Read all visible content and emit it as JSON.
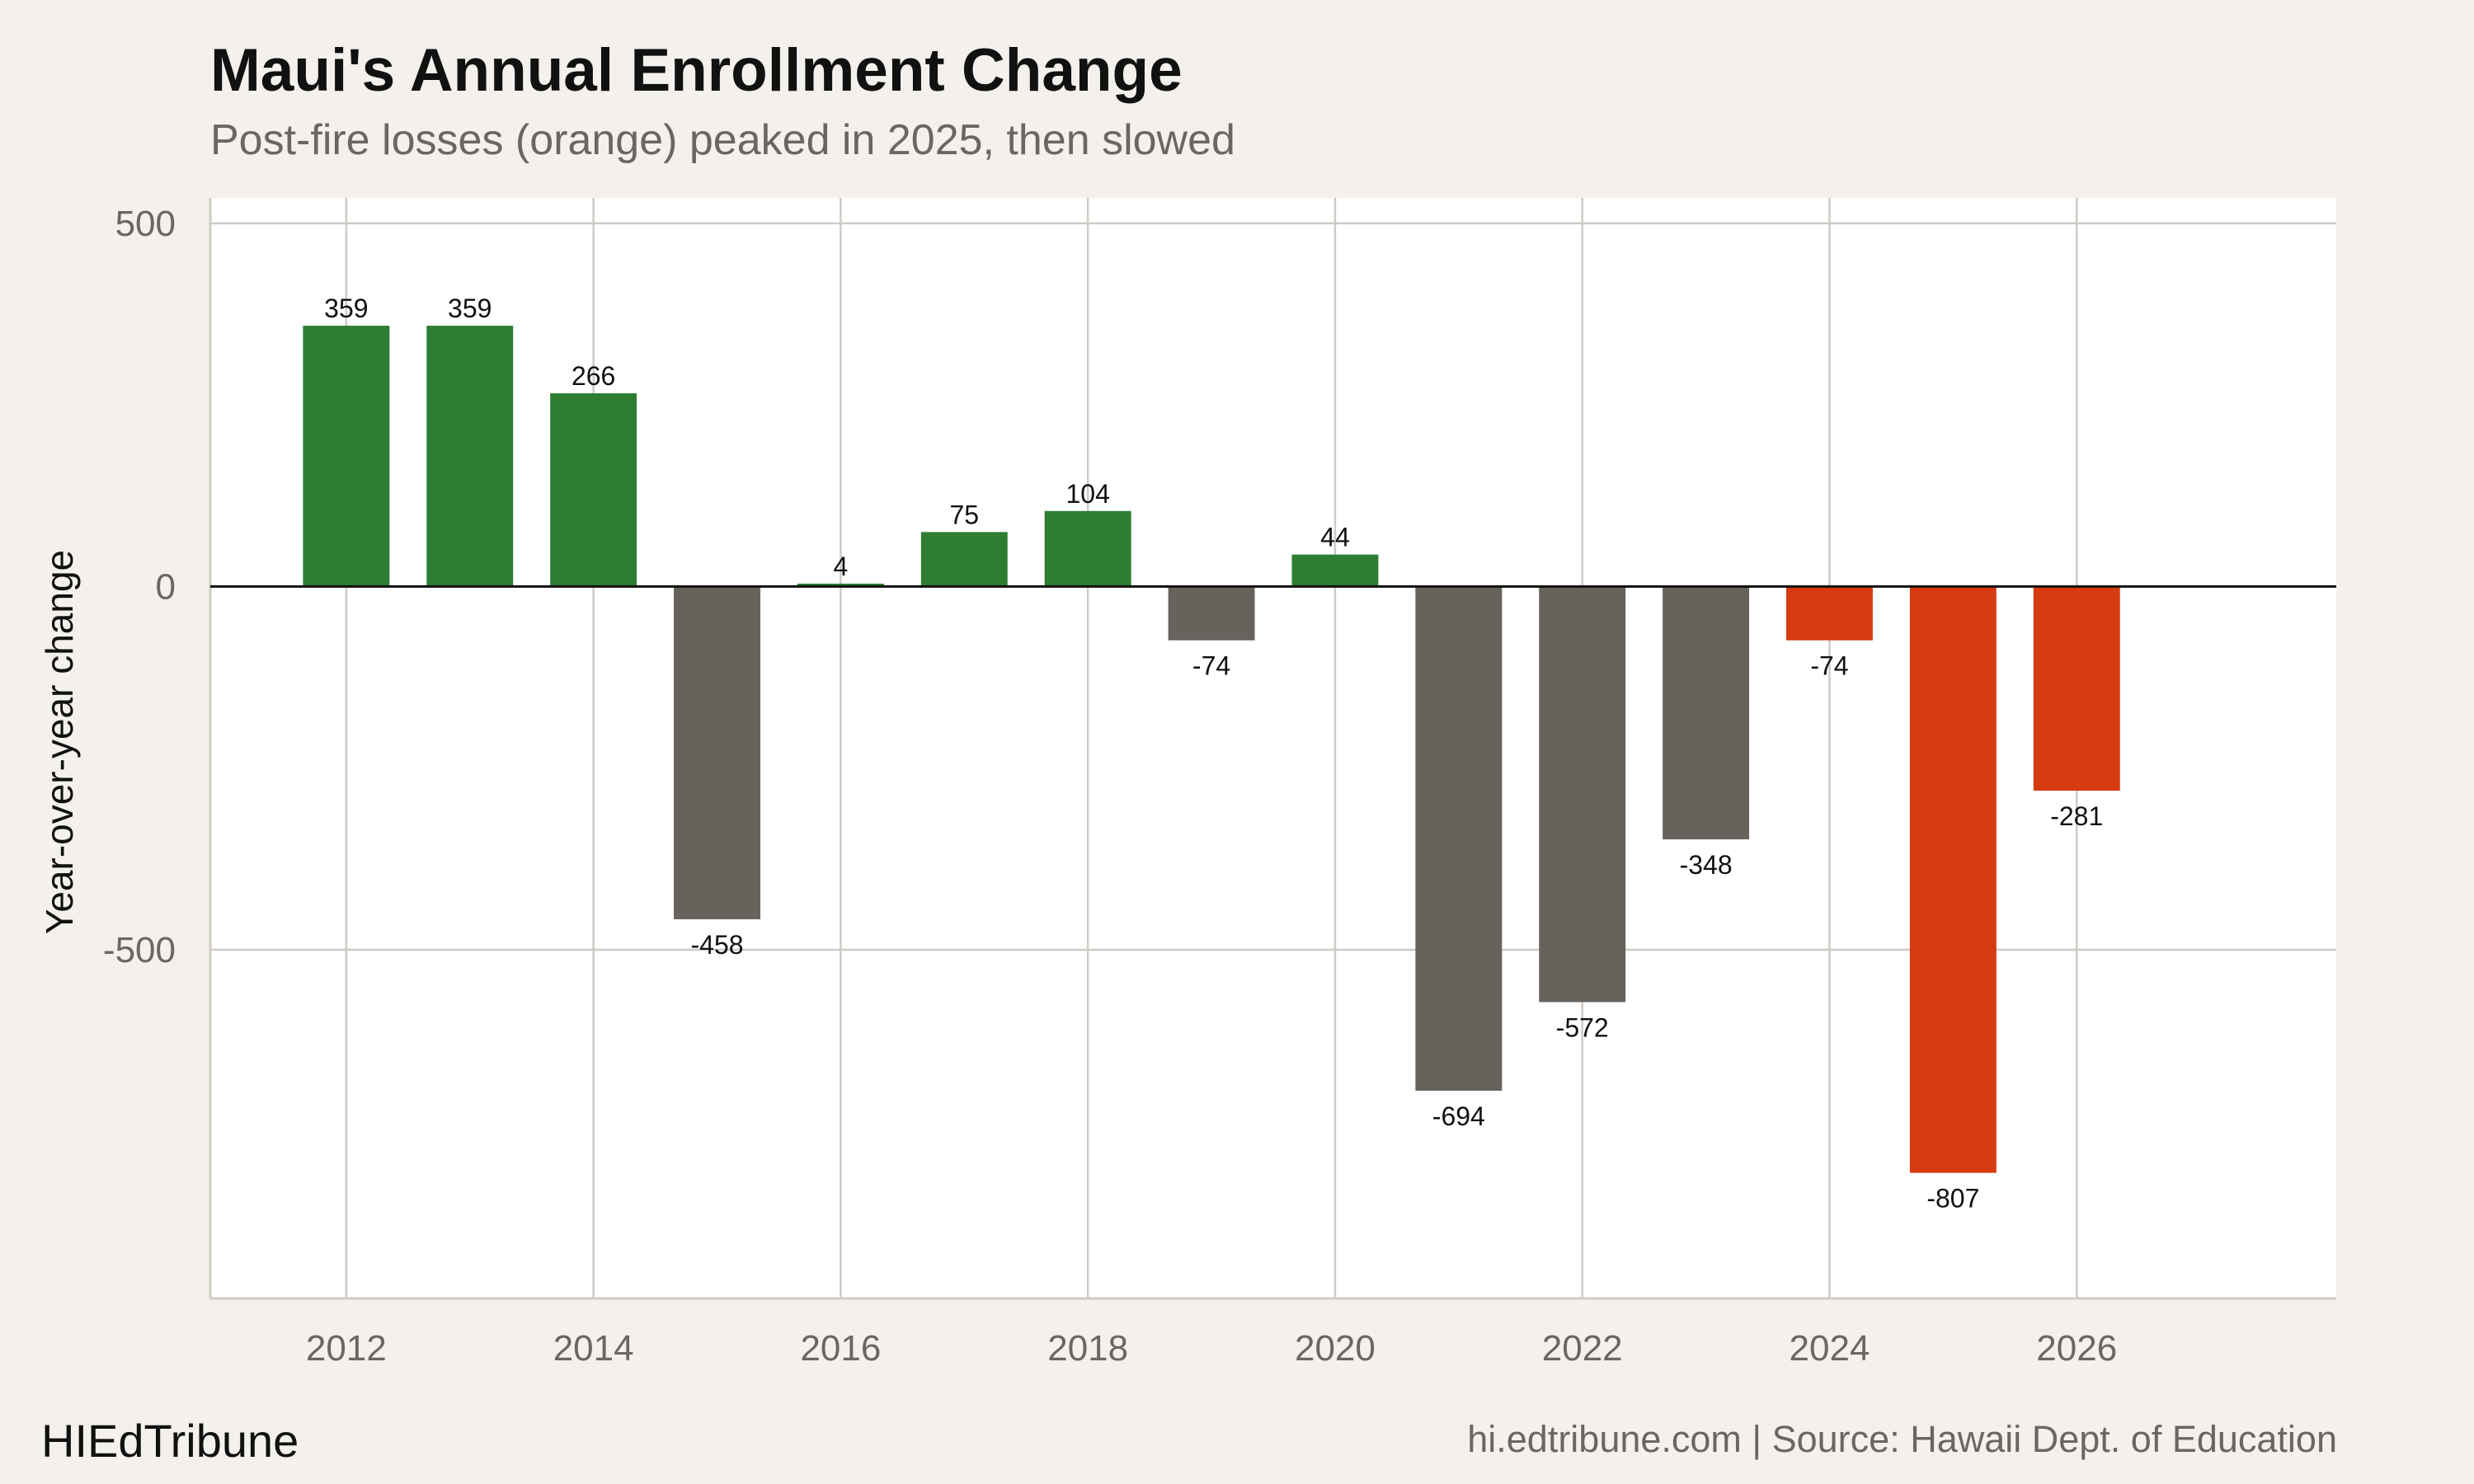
{
  "header": {
    "title": "Maui's Annual Enrollment Change",
    "subtitle": "Post-fire losses (orange) peaked in 2025, then slowed"
  },
  "footer": {
    "brand": "HIEdTribune",
    "source": "hi.edtribune.com | Source: Hawaii Dept. of Education"
  },
  "colors": {
    "background": "#f4f1ec",
    "panel": "#ffffff",
    "gain": "#2e7d32",
    "loss": "#68625d",
    "post_fire": "#d63a0f",
    "grid": "#cfcbc5"
  },
  "chart_data": {
    "type": "bar",
    "title": "Maui's Annual Enrollment Change",
    "subtitle": "Post-fire losses (orange) peaked in 2025, then slowed",
    "xlabel": "",
    "ylabel": "Year-over-year change",
    "x": [
      2012,
      2013,
      2014,
      2015,
      2016,
      2017,
      2018,
      2019,
      2020,
      2021,
      2022,
      2023,
      2024,
      2025,
      2026
    ],
    "values": [
      359,
      359,
      266,
      -458,
      4,
      75,
      104,
      -74,
      44,
      -694,
      -572,
      -348,
      -74,
      -807,
      -281
    ],
    "categories_color": [
      "gain",
      "gain",
      "gain",
      "loss",
      "gain",
      "gain",
      "gain",
      "loss",
      "gain",
      "loss",
      "loss",
      "loss",
      "post_fire",
      "post_fire",
      "post_fire"
    ],
    "data_labels": [
      "359",
      "359",
      "266",
      "-458",
      "4",
      "75",
      "104",
      "-74",
      "44",
      "-694",
      "-572",
      "-348",
      "-74",
      "-807",
      "-281"
    ],
    "xlim": [
      2010.9,
      2028.1
    ],
    "ylim": [
      -980,
      535
    ],
    "xticks": [
      2012,
      2014,
      2016,
      2018,
      2020,
      2022,
      2024,
      2026
    ],
    "xtick_labels": [
      "2012",
      "2014",
      "2016",
      "2018",
      "2020",
      "2022",
      "2024",
      "2026"
    ],
    "yticks": [
      500,
      0,
      -500
    ],
    "ytick_labels": [
      "500",
      "0",
      "-500"
    ],
    "grid": true,
    "legend": "none"
  }
}
